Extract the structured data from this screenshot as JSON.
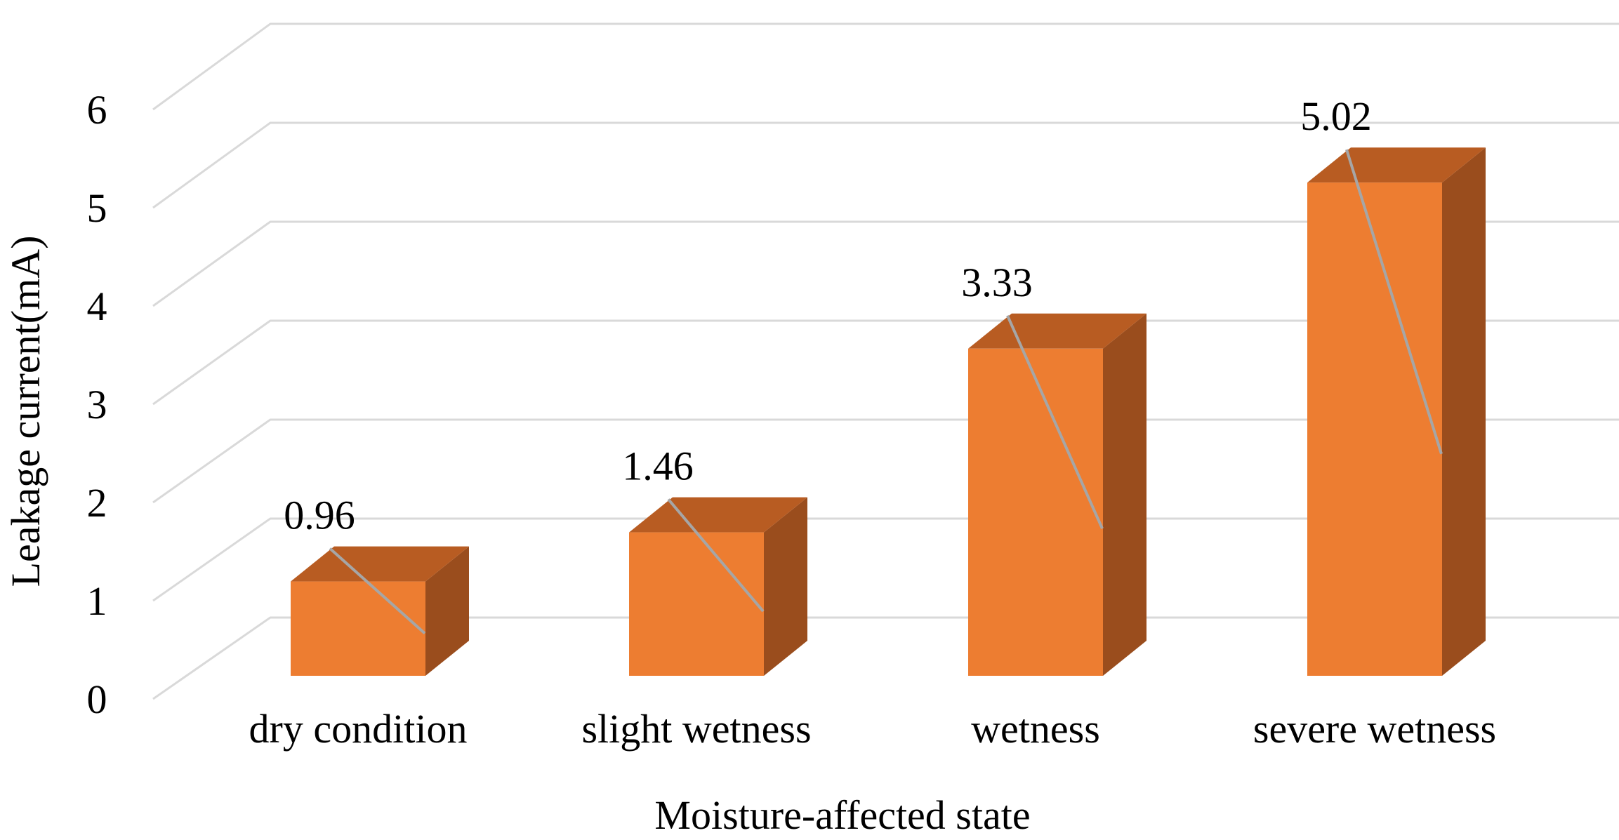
{
  "chart_data": {
    "type": "bar",
    "title": "",
    "categories": [
      "dry condition",
      "slight wetness",
      "wetness",
      "severe wetness"
    ],
    "series": [
      {
        "name": "Leakage current",
        "values": [
          0.96,
          1.46,
          3.33,
          5.02
        ]
      }
    ],
    "data_labels": [
      "0.96",
      "1.46",
      "3.33",
      "5.02"
    ],
    "xlabel": "Moisture-affected state",
    "ylabel": "Leakage current(mA)",
    "ylim": [
      0,
      6
    ],
    "yticks": [
      "0",
      "1",
      "2",
      "3",
      "4",
      "5",
      "6"
    ],
    "grid": true,
    "style": "3d-column"
  },
  "colors": {
    "bar_front": "#ED7D31",
    "bar_top": "#B85C22",
    "bar_side": "#9A4D1D",
    "grid": "#D9D9D9",
    "leader": "#A6A6A6"
  }
}
